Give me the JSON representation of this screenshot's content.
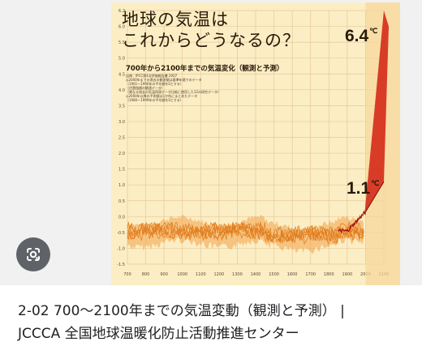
{
  "poster": {
    "title_line1": "地球の気温は",
    "title_line2": "これからどうなるの？",
    "subtitle": "700年から2100年までの気温変化（観測と予測）",
    "notes": [
      "出典：IPCC第4次評価報告書 2007",
      "◎2000年までの過去の観測値は基準年値でのデータ",
      "（1961〜1990年の平均値を0とする）",
      "（代替指標の観測データ）",
      "（異なる過去の気温再現データ比較に使用した12の研究データ）",
      "◎2000年以降の予測値は1か所にまとめたデータ",
      "（1980〜1999年の平均値を0とする）"
    ],
    "callout_high": "6.4",
    "callout_high_unit": "℃",
    "callout_low": "1.1",
    "callout_low_unit": "℃",
    "y_ticks": [
      "6.2",
      "6.0",
      "5.5",
      "5.0",
      "4.5",
      "4.0",
      "3.5",
      "3.0",
      "2.5",
      "2.0",
      "1.5",
      "1.0",
      "0.5",
      "0.0",
      "-0.5",
      "-1.0",
      "-1.5"
    ],
    "x_ticks": [
      "700",
      "800",
      "900",
      "1000",
      "1100",
      "1200",
      "1300",
      "1400",
      "1500",
      "1600",
      "1700",
      "1800",
      "1900",
      "2000",
      "2100"
    ],
    "colors": {
      "background": "#fbeec4",
      "grid": "#e8c79a",
      "band": "#f2a24a",
      "line": "#e07b1c",
      "observed": "#a8160e",
      "projection": "#d42a1a"
    }
  },
  "lens_icon": "google-lens-icon",
  "caption": {
    "line1": "2-02 700～2100年までの気温変動（観測と予測） |",
    "line2": "JCCCA 全国地球温暖化防止活動推進センター"
  }
}
